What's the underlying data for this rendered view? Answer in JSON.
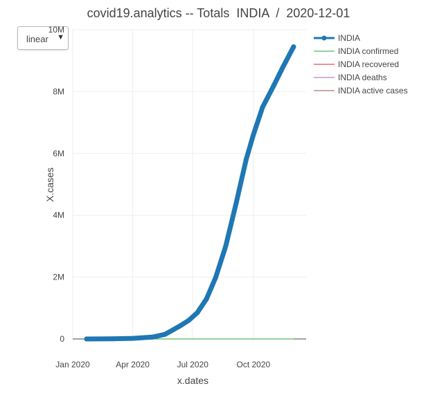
{
  "title": "covid19.analytics -- Totals  INDIA  /  2020-12-01",
  "scale_select": {
    "value": "linear"
  },
  "chart_data": {
    "type": "line",
    "xlabel": "x.dates",
    "ylabel": "X.cases",
    "x_range": [
      "2020-01-01",
      "2020-12-20"
    ],
    "y_range": [
      0,
      10000000
    ],
    "x_ticks": [
      {
        "date": "2020-01-01",
        "label": "Jan 2020"
      },
      {
        "date": "2020-04-01",
        "label": "Apr 2020"
      },
      {
        "date": "2020-07-01",
        "label": "Jul 2020"
      },
      {
        "date": "2020-10-01",
        "label": "Oct 2020"
      }
    ],
    "y_ticks": [
      {
        "value": 0,
        "label": "0"
      },
      {
        "value": 2000000,
        "label": "2M"
      },
      {
        "value": 4000000,
        "label": "4M"
      },
      {
        "value": 6000000,
        "label": "6M"
      },
      {
        "value": 8000000,
        "label": "8M"
      },
      {
        "value": 10000000,
        "label": "10M"
      }
    ],
    "grid": true,
    "legend_position": "right",
    "series": [
      {
        "name": "INDIA",
        "color": "#1f77b4",
        "mode": "lines+markers",
        "points": [
          [
            "2020-01-22",
            0
          ],
          [
            "2020-03-01",
            5000
          ],
          [
            "2020-04-01",
            20000
          ],
          [
            "2020-05-01",
            60000
          ],
          [
            "2020-05-20",
            150000
          ],
          [
            "2020-06-10",
            400000
          ],
          [
            "2020-06-25",
            600000
          ],
          [
            "2020-07-08",
            850000
          ],
          [
            "2020-07-22",
            1300000
          ],
          [
            "2020-08-05",
            2000000
          ],
          [
            "2020-08-20",
            3000000
          ],
          [
            "2020-09-05",
            4400000
          ],
          [
            "2020-09-20",
            5800000
          ],
          [
            "2020-10-01",
            6600000
          ],
          [
            "2020-10-15",
            7500000
          ],
          [
            "2020-11-01",
            8200000
          ],
          [
            "2020-11-15",
            8800000
          ],
          [
            "2020-12-01",
            9450000
          ]
        ]
      },
      {
        "name": "INDIA confirmed",
        "color": "#2ca02c",
        "mode": "lines",
        "points": [
          [
            "2020-01-22",
            0
          ],
          [
            "2020-12-01",
            0
          ]
        ]
      },
      {
        "name": "INDIA recovered",
        "color": "#d62728",
        "mode": "lines",
        "points": [
          [
            "2020-01-22",
            0
          ],
          [
            "2020-12-01",
            0
          ]
        ]
      },
      {
        "name": "INDIA deaths",
        "color": "#9467bd",
        "mode": "lines",
        "points": [
          [
            "2020-01-22",
            0
          ],
          [
            "2020-12-01",
            0
          ]
        ]
      },
      {
        "name": "INDIA active cases",
        "color": "#8c564b",
        "mode": "lines",
        "points": [
          [
            "2020-01-22",
            0
          ],
          [
            "2020-12-01",
            0
          ]
        ]
      }
    ]
  }
}
